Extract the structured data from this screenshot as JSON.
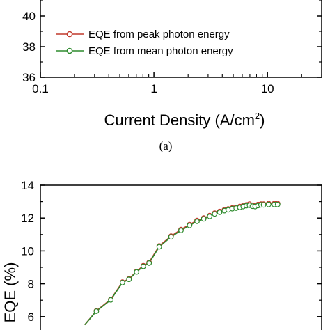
{
  "chart_data": [
    {
      "panel": "a",
      "type": "line",
      "xlabel": "Current Density (A/cm",
      "xlabel_sup": "2",
      "xlabel_close": ")",
      "xscale": "log",
      "xlim": [
        0.1,
        30
      ],
      "x_ticks": [
        "0.1",
        "1",
        "10"
      ],
      "y_ticks": [
        "36",
        "38",
        "40"
      ],
      "ylim": [
        36,
        41.5
      ],
      "legend": [
        {
          "label": "EQE from peak photon energy",
          "color": "#c0392b"
        },
        {
          "label": "EQE from mean photon energy",
          "color": "#2e8b2e"
        }
      ],
      "legend_position": "lower-left",
      "caption": "(a)"
    },
    {
      "panel": "b",
      "type": "line",
      "ylabel": "EQE (%)",
      "ylim": [
        5.5,
        14
      ],
      "y_ticks": [
        "6",
        "8",
        "10",
        "12",
        "14"
      ],
      "xlim": [
        0.3,
        30
      ],
      "series": [
        {
          "color": "#c0392b",
          "x": [
            0.75,
            0.95,
            1.15,
            1.28,
            1.45,
            1.62,
            1.78,
            2.1,
            2.55,
            3.0,
            3.45,
            3.9,
            4.35,
            4.8,
            5.2,
            5.65,
            6.1,
            6.5,
            6.95,
            7.4,
            7.85,
            8.3,
            8.75,
            9.2,
            9.65,
            10.1,
            10.6,
            11.1,
            11.6,
            12.6,
            13.8,
            14.6
          ],
          "values": [
            6.35,
            7.05,
            8.1,
            8.3,
            8.75,
            9.1,
            9.3,
            10.3,
            10.9,
            11.3,
            11.6,
            11.85,
            12.0,
            12.15,
            12.3,
            12.4,
            12.5,
            12.55,
            12.62,
            12.65,
            12.7,
            12.75,
            12.8,
            12.85,
            12.78,
            12.75,
            12.82,
            12.85,
            12.85,
            12.88,
            12.88,
            12.88
          ]
        },
        {
          "color": "#2e8b2e",
          "x": [
            0.75,
            0.95,
            1.15,
            1.28,
            1.45,
            1.62,
            1.78,
            2.1,
            2.55,
            3.0,
            3.45,
            3.9,
            4.35,
            4.8,
            5.2,
            5.65,
            6.1,
            6.5,
            6.95,
            7.4,
            7.85,
            8.3,
            8.75,
            9.2,
            9.65,
            10.1,
            10.6,
            11.1,
            11.6,
            12.6,
            13.8,
            14.6
          ],
          "values": [
            6.33,
            7.02,
            8.07,
            8.27,
            8.72,
            9.06,
            9.26,
            10.25,
            10.85,
            11.25,
            11.55,
            11.8,
            11.95,
            12.1,
            12.25,
            12.35,
            12.45,
            12.5,
            12.57,
            12.6,
            12.65,
            12.7,
            12.75,
            12.78,
            12.72,
            12.7,
            12.76,
            12.8,
            12.8,
            12.82,
            12.82,
            12.82
          ]
        }
      ]
    }
  ]
}
